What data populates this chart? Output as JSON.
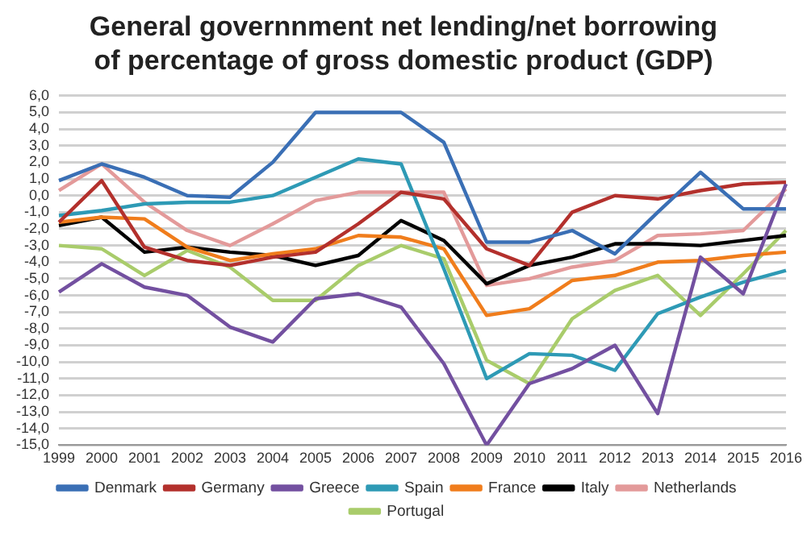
{
  "chart_data": {
    "type": "line",
    "title": "General governnment net lending/net borrowing of percentage of gross domestic product (GDP)",
    "categories": [
      "1999",
      "2000",
      "2001",
      "2002",
      "2003",
      "2004",
      "2005",
      "2006",
      "2007",
      "2008",
      "2009",
      "2010",
      "2011",
      "2012",
      "2013",
      "2014",
      "2015",
      "2016"
    ],
    "series": [
      {
        "name": "Denmark",
        "color": "#3a6fb5",
        "values": [
          0.9,
          1.9,
          1.1,
          0.0,
          -0.1,
          2.0,
          5.0,
          5.0,
          5.0,
          3.2,
          -2.8,
          -2.8,
          -2.1,
          -3.5,
          -1.0,
          1.4,
          -0.8,
          -0.8
        ]
      },
      {
        "name": "Germany",
        "color": "#b3302c",
        "values": [
          -1.6,
          0.9,
          -3.1,
          -3.9,
          -4.2,
          -3.7,
          -3.4,
          -1.7,
          0.2,
          -0.2,
          -3.2,
          -4.2,
          -1.0,
          0.0,
          -0.2,
          0.3,
          0.7,
          0.8
        ]
      },
      {
        "name": "Greece",
        "color": "#7350a0",
        "values": [
          -5.8,
          -4.1,
          -5.5,
          -6.0,
          -7.9,
          -8.8,
          -6.2,
          -5.9,
          -6.7,
          -10.1,
          -15.0,
          -11.3,
          -10.4,
          -9.0,
          -13.1,
          -3.7,
          -5.9,
          0.7
        ]
      },
      {
        "name": "Spain",
        "color": "#2e9ab5",
        "values": [
          -1.2,
          -0.9,
          -0.5,
          -0.4,
          -0.4,
          0.0,
          1.1,
          2.2,
          1.9,
          -4.4,
          -11.0,
          -9.5,
          -9.6,
          -10.5,
          -7.1,
          -6.1,
          -5.2,
          -4.5
        ]
      },
      {
        "name": "France",
        "color": "#f07d1c",
        "values": [
          -1.6,
          -1.3,
          -1.4,
          -3.1,
          -3.9,
          -3.5,
          -3.2,
          -2.4,
          -2.5,
          -3.2,
          -7.2,
          -6.8,
          -5.1,
          -4.8,
          -4.0,
          -3.9,
          -3.6,
          -3.4
        ]
      },
      {
        "name": "Italy",
        "color": "#000000",
        "values": [
          -1.8,
          -1.3,
          -3.4,
          -3.1,
          -3.4,
          -3.6,
          -4.2,
          -3.6,
          -1.5,
          -2.7,
          -5.3,
          -4.2,
          -3.7,
          -2.9,
          -2.9,
          -3.0,
          -2.7,
          -2.4
        ]
      },
      {
        "name": "Netherlands",
        "color": "#e39a9a",
        "values": [
          0.3,
          1.9,
          -0.4,
          -2.1,
          -3.0,
          -1.7,
          -0.3,
          0.2,
          0.2,
          0.2,
          -5.4,
          -5.0,
          -4.3,
          -3.9,
          -2.4,
          -2.3,
          -2.1,
          0.4
        ]
      },
      {
        "name": "Portugal",
        "color": "#a9cc6b",
        "values": [
          -3.0,
          -3.2,
          -4.8,
          -3.3,
          -4.3,
          -6.3,
          -6.3,
          -4.2,
          -3.0,
          -3.8,
          -9.9,
          -11.3,
          -7.4,
          -5.7,
          -4.8,
          -7.2,
          -4.7,
          -2.1
        ]
      }
    ],
    "ylim": [
      -15,
      6
    ],
    "yticks": [
      {
        "value": 6,
        "label": "6,0"
      },
      {
        "value": 5,
        "label": "5,0"
      },
      {
        "value": 4,
        "label": "4,0"
      },
      {
        "value": 3,
        "label": "3,0"
      },
      {
        "value": 2,
        "label": "2,0"
      },
      {
        "value": 1,
        "label": "1,0"
      },
      {
        "value": 0,
        "label": "0,0"
      },
      {
        "value": -1,
        "label": "-1,0"
      },
      {
        "value": -2,
        "label": "-2,0"
      },
      {
        "value": -3,
        "label": "-3,0"
      },
      {
        "value": -4,
        "label": "-4,0"
      },
      {
        "value": -5,
        "label": "-5,0"
      },
      {
        "value": -6,
        "label": "-6,0"
      },
      {
        "value": -7,
        "label": "-7,0"
      },
      {
        "value": -8,
        "label": "-8,0"
      },
      {
        "value": -9,
        "label": "-9,0"
      },
      {
        "value": -10,
        "label": "-10,0"
      },
      {
        "value": -11,
        "label": "-11,0"
      },
      {
        "value": -12,
        "label": "-12,0"
      },
      {
        "value": -13,
        "label": "-13,0"
      },
      {
        "value": -14,
        "label": "-14,0"
      },
      {
        "value": -15,
        "label": "-15,0"
      }
    ],
    "grid": "y",
    "legend": "bottom",
    "marker": "none",
    "line_style": "solid"
  }
}
